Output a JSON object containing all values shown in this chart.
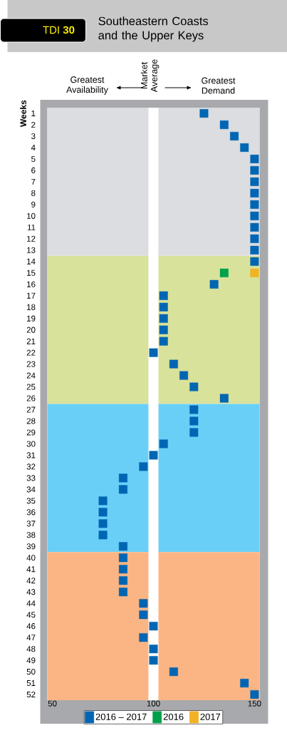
{
  "chart_data": {
    "type": "scatter",
    "title": "Southeastern Coasts and the Upper Keys",
    "subtitle": "TDI **30**",
    "ylabel": "Weeks",
    "annotations": [
      "Greatest Availability",
      "Market Average",
      "Greatest Demand"
    ],
    "xlim": [
      47.5,
      152.5
    ],
    "xticks": [
      50,
      100,
      150
    ],
    "ylim": [
      52.5,
      0.5
    ],
    "yticks": [
      1,
      2,
      3,
      4,
      5,
      6,
      7,
      8,
      9,
      10,
      11,
      12,
      13,
      14,
      15,
      16,
      17,
      18,
      19,
      20,
      21,
      22,
      23,
      24,
      25,
      26,
      27,
      28,
      29,
      30,
      31,
      32,
      33,
      34,
      35,
      36,
      37,
      38,
      39,
      40,
      41,
      42,
      43,
      44,
      45,
      46,
      47,
      48,
      49,
      50,
      51,
      52
    ],
    "bands": [
      {
        "axis": "y",
        "from": 0.5,
        "to": 13.5,
        "color": "#dcdde0"
      },
      {
        "axis": "y",
        "from": 13.5,
        "to": 26.5,
        "color": "#d9e29b"
      },
      {
        "axis": "y",
        "from": 26.5,
        "to": 39.5,
        "color": "#6acff6"
      },
      {
        "axis": "y",
        "from": 39.5,
        "to": 52.5,
        "color": "#fbb584"
      },
      {
        "axis": "x",
        "from": 97.5,
        "to": 102.5,
        "color": "#ffffff"
      }
    ],
    "marker": "square",
    "legend": "bottom",
    "series": [
      {
        "name": "2016 – 2017",
        "color": "#0066b3",
        "x": [
          125,
          135,
          140,
          145,
          150,
          150,
          150,
          150,
          150,
          150,
          150,
          150,
          150,
          150,
          130,
          105,
          105,
          105,
          105,
          105,
          100,
          110,
          115,
          120,
          135,
          120,
          120,
          120,
          105,
          100,
          95,
          85,
          85,
          75,
          75,
          75,
          75,
          85,
          85,
          85,
          85,
          85,
          95,
          95,
          100,
          95,
          100,
          100,
          110,
          145,
          150
        ],
        "values": [
          1,
          2,
          3,
          4,
          5,
          6,
          7,
          8,
          9,
          10,
          11,
          12,
          13,
          14,
          16,
          17,
          18,
          19,
          20,
          21,
          22,
          23,
          24,
          25,
          26,
          27,
          28,
          29,
          30,
          31,
          32,
          33,
          34,
          35,
          36,
          37,
          38,
          39,
          40,
          41,
          42,
          43,
          44,
          45,
          46,
          47,
          48,
          49,
          50,
          51,
          52
        ]
      },
      {
        "name": "2016",
        "color": "#00a14b",
        "x": [
          135
        ],
        "values": [
          15
        ]
      },
      {
        "name": "2017",
        "color": "#f0b323",
        "x": [
          150
        ],
        "values": [
          15
        ]
      }
    ]
  }
}
